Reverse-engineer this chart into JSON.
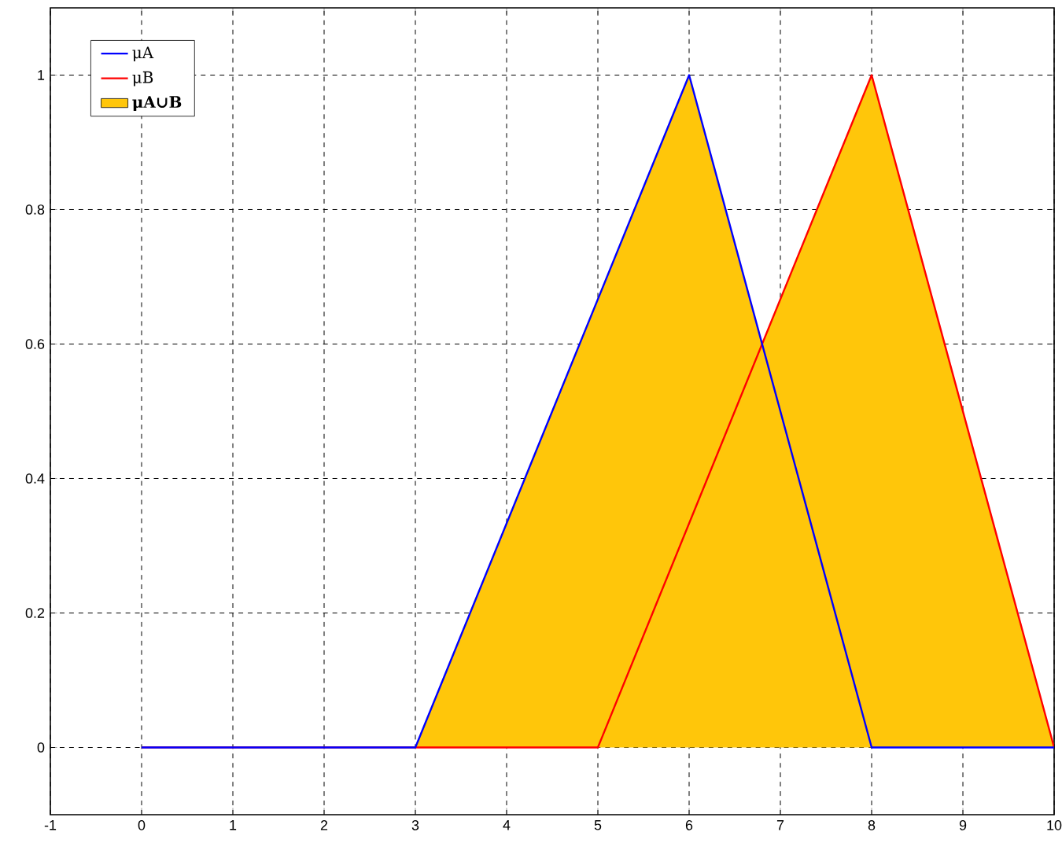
{
  "chart_data": {
    "type": "line",
    "xlim": [
      -1,
      10
    ],
    "ylim": [
      -0.1,
      1.1
    ],
    "xticks": [
      -1,
      0,
      1,
      2,
      3,
      4,
      5,
      6,
      7,
      8,
      9,
      10
    ],
    "yticks": [
      0,
      0.2,
      0.4,
      0.6,
      0.8,
      1
    ],
    "grid": true,
    "legend": "top left",
    "line_style": "solid",
    "marker": "none",
    "series": [
      {
        "name": "**μA∪B**",
        "type": "area",
        "color": "#ffc60a",
        "x": [
          3,
          6,
          6.8,
          8,
          10
        ],
        "values": [
          0,
          1,
          0.6,
          1,
          0
        ]
      },
      {
        "name": "μA",
        "color": "#0000ff",
        "x": [
          0,
          3,
          6,
          8,
          10
        ],
        "values": [
          0,
          0,
          1,
          0,
          0
        ]
      },
      {
        "name": "μB",
        "color": "#ff0000",
        "x": [
          0,
          5,
          8,
          10
        ],
        "values": [
          0,
          0,
          1,
          0
        ]
      }
    ]
  }
}
